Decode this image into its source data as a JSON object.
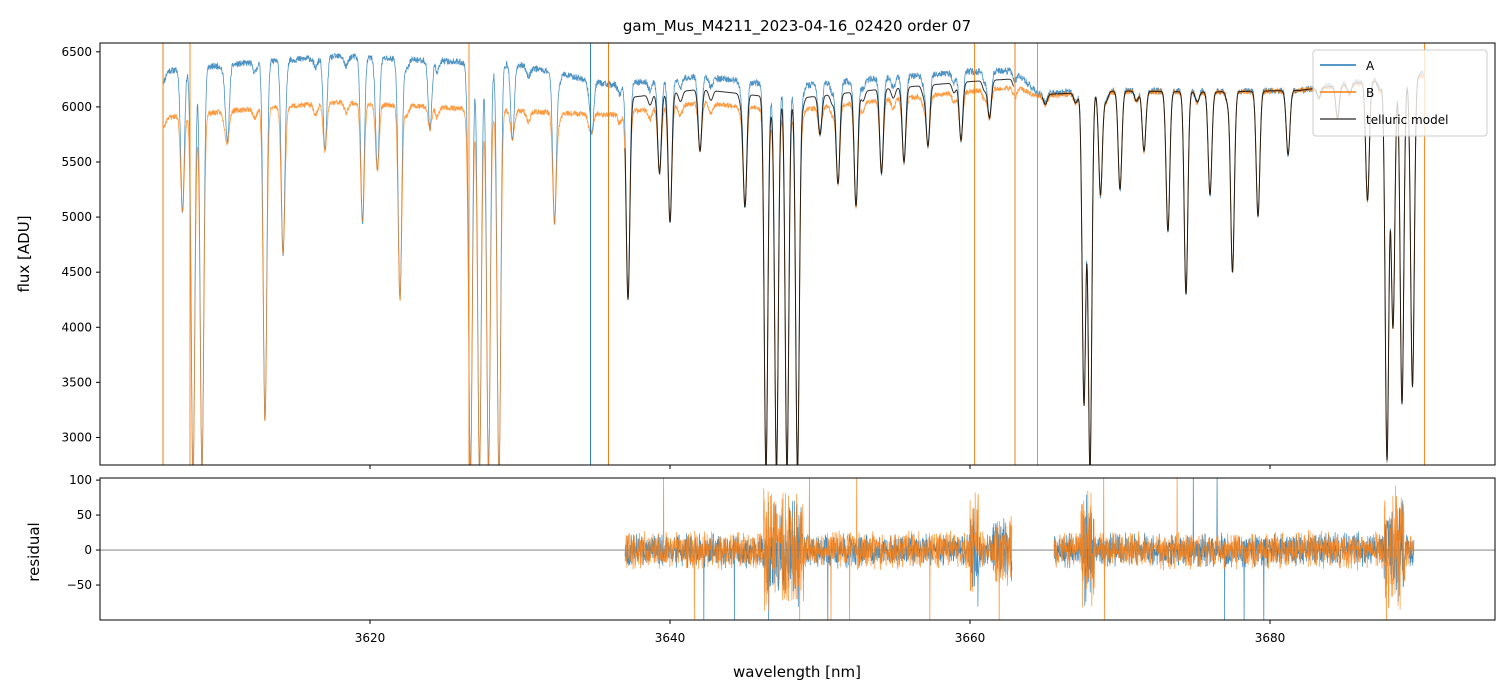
{
  "chart_data": [
    {
      "type": "line",
      "title": "gam_Mus_M4211_2023-04-16_02420  order 07",
      "xlabel": "",
      "ylabel": "flux [ADU]",
      "xlim": [
        3602,
        3695
      ],
      "ylim": [
        2750,
        6580
      ],
      "yticks": [
        3000,
        3500,
        4000,
        4500,
        5000,
        5500,
        6000,
        6500
      ],
      "xticks": [
        3620,
        3640,
        3660,
        3680
      ],
      "legend": {
        "placement": "top-right",
        "entries": [
          "A",
          "B",
          "telluric model"
        ]
      },
      "series": [
        {
          "name": "A",
          "color": "#1f77b4",
          "continuum": [
            [
              3606,
              6320
            ],
            [
              3612,
              6400
            ],
            [
              3618,
              6460
            ],
            [
              3624,
              6420
            ],
            [
              3630,
              6380
            ],
            [
              3636,
              6200
            ],
            [
              3642,
              6280
            ],
            [
              3648,
              6180
            ],
            [
              3654,
              6260
            ],
            [
              3660,
              6320
            ],
            [
              3663,
              6330
            ],
            [
              3664.5,
              6120
            ],
            [
              3670,
              6150
            ],
            [
              3676,
              6140
            ],
            [
              3682,
              6150
            ],
            [
              3690,
              6300
            ]
          ],
          "range": [
            3606.2,
            3690.3
          ]
        },
        {
          "name": "B",
          "color": "#ff7f0e",
          "continuum": [
            [
              3606,
              5900
            ],
            [
              3612,
              5980
            ],
            [
              3618,
              6040
            ],
            [
              3624,
              6000
            ],
            [
              3630,
              5960
            ],
            [
              3636,
              5930
            ],
            [
              3642,
              6040
            ],
            [
              3648,
              5960
            ],
            [
              3654,
              6060
            ],
            [
              3660,
              6140
            ],
            [
              3663,
              6180
            ],
            [
              3664.5,
              6100
            ],
            [
              3670,
              6140
            ],
            [
              3676,
              6130
            ],
            [
              3682,
              6150
            ],
            [
              3690,
              6280
            ]
          ],
          "range": [
            3606.2,
            3690.3
          ]
        },
        {
          "name": "telluric model",
          "color": "#000000",
          "segments": [
            [
              3637.0,
              3662.9
            ],
            [
              3664.8,
              3690.0
            ]
          ]
        }
      ],
      "absorption_lines": [
        [
          3607.5,
          5050
        ],
        [
          3608.2,
          2700
        ],
        [
          3608.8,
          2700
        ],
        [
          3610.5,
          5700
        ],
        [
          3613.0,
          3150
        ],
        [
          3614.2,
          4700
        ],
        [
          3617.0,
          5600
        ],
        [
          3619.5,
          4950
        ],
        [
          3620.5,
          5500
        ],
        [
          3622.0,
          4250
        ],
        [
          3624.0,
          5800
        ],
        [
          3626.7,
          2700
        ],
        [
          3627.3,
          2700
        ],
        [
          3627.9,
          2700
        ],
        [
          3628.6,
          2700
        ],
        [
          3629.5,
          5700
        ],
        [
          3632.3,
          4950
        ],
        [
          3634.8,
          5800
        ],
        [
          3637.2,
          4250
        ],
        [
          3639.3,
          5400
        ],
        [
          3640.0,
          4950
        ],
        [
          3642.0,
          5600
        ],
        [
          3645.0,
          5100
        ],
        [
          3646.4,
          2700
        ],
        [
          3647.1,
          2700
        ],
        [
          3647.8,
          2700
        ],
        [
          3648.5,
          2700
        ],
        [
          3650.0,
          5750
        ],
        [
          3651.2,
          5300
        ],
        [
          3652.4,
          5100
        ],
        [
          3654.1,
          5400
        ],
        [
          3655.6,
          5500
        ],
        [
          3657.2,
          5650
        ],
        [
          3659.4,
          5700
        ],
        [
          3661.3,
          5900
        ],
        [
          3667.6,
          3300
        ],
        [
          3668.0,
          2700
        ],
        [
          3668.7,
          5200
        ],
        [
          3670.0,
          5250
        ],
        [
          3671.6,
          5600
        ],
        [
          3673.2,
          4950
        ],
        [
          3674.4,
          4300
        ],
        [
          3676.0,
          5200
        ],
        [
          3677.5,
          4500
        ],
        [
          3679.2,
          5100
        ],
        [
          3681.2,
          5650
        ],
        [
          3684.5,
          5900
        ],
        [
          3686.5,
          5150
        ],
        [
          3687.8,
          2800
        ],
        [
          3688.2,
          4000
        ],
        [
          3688.8,
          3300
        ],
        [
          3689.5,
          3500
        ]
      ],
      "spikes_A": [
        3606.2,
        3634.7,
        3635.9,
        3663.0
      ],
      "spikes_B": [
        3606.2,
        3608.0,
        3626.6,
        3635.9,
        3660.3,
        3663.0,
        3664.5,
        3690.3
      ]
    },
    {
      "type": "line",
      "xlabel": "wavelength [nm]",
      "ylabel": "residual",
      "xlim": [
        3602,
        3695
      ],
      "ylim": [
        -100,
        103
      ],
      "yticks": [
        -50,
        0,
        50,
        100
      ],
      "yticklabels": [
        "−50",
        "0",
        "50",
        "100"
      ],
      "xticks": [
        3620,
        3640,
        3660,
        3680
      ],
      "zero_line": 0,
      "series": [
        {
          "name": "A",
          "color": "#1f77b4",
          "segments": [
            [
              3637.0,
              3662.8
            ],
            [
              3665.6,
              3689.6
            ]
          ],
          "noise": 18
        },
        {
          "name": "B",
          "color": "#ff7f0e",
          "segments": [
            [
              3637.0,
              3662.8
            ],
            [
              3665.6,
              3689.6
            ]
          ],
          "noise": 20
        }
      ]
    }
  ]
}
